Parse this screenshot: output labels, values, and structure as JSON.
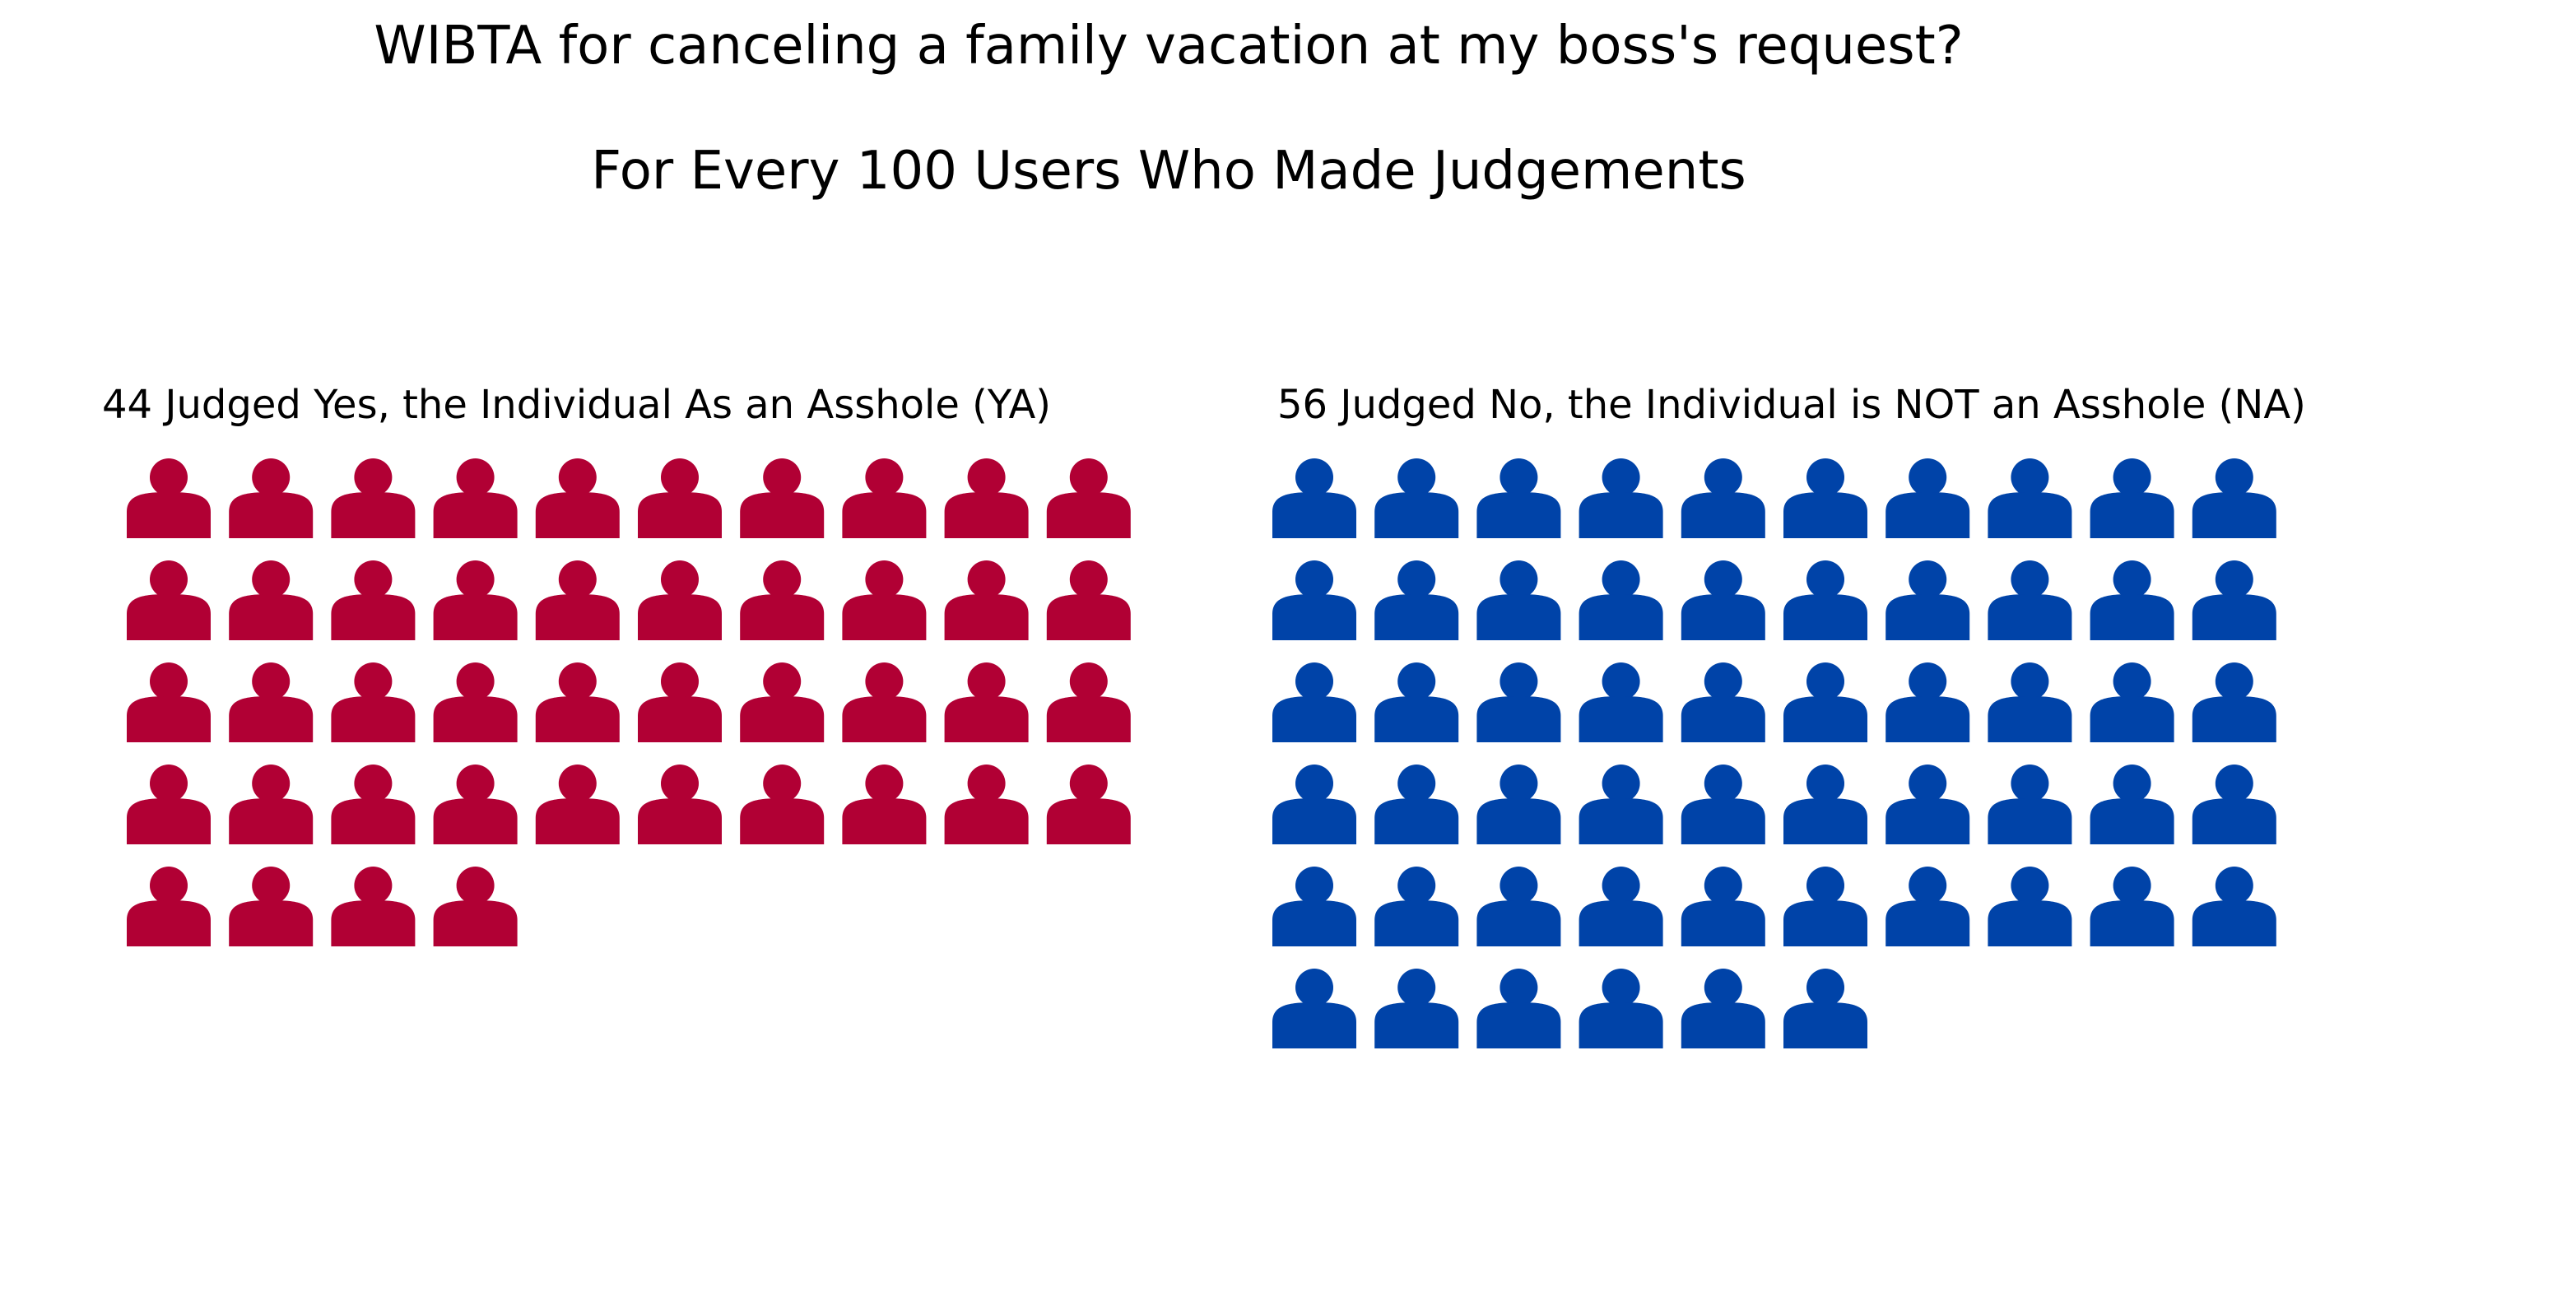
{
  "chart_data": {
    "type": "pictogram",
    "title": "WIBTA for canceling a family vacation at my boss's request?",
    "subtitle": "For Every 100 Users Who Made Judgements",
    "icon": "person-icon",
    "icons_per_row": 10,
    "groups": [
      {
        "label": "44 Judged Yes, the Individual As an Asshole (YA)",
        "value": 44,
        "color": "#B10034"
      },
      {
        "label": "56 Judged No, the Individual is NOT an Asshole (NA)",
        "value": 56,
        "color": "#0043A8"
      }
    ]
  }
}
